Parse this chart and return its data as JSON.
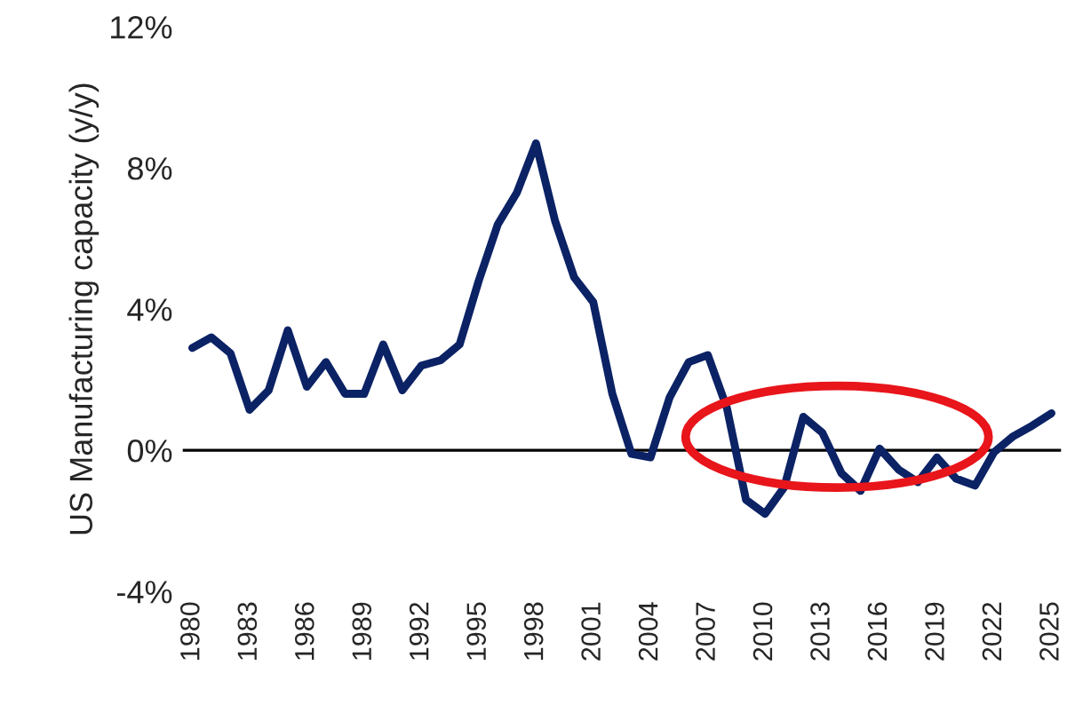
{
  "chart_data": {
    "type": "line",
    "ylabel": "US Manufacturing capacity (y/y)",
    "x": [
      1980,
      1981,
      1982,
      1983,
      1984,
      1985,
      1986,
      1987,
      1988,
      1989,
      1990,
      1991,
      1992,
      1993,
      1994,
      1995,
      1996,
      1997,
      1998,
      1999,
      2000,
      2001,
      2002,
      2003,
      2004,
      2005,
      2006,
      2007,
      2008,
      2009,
      2010,
      2011,
      2012,
      2013,
      2014,
      2015,
      2016,
      2017,
      2018,
      2019,
      2020,
      2021,
      2022,
      2023,
      2024,
      2025
    ],
    "series": [
      {
        "color": "#0b2265",
        "values": [
          2.9,
          3.2,
          2.75,
          1.15,
          1.7,
          3.4,
          1.8,
          2.5,
          1.6,
          1.6,
          3.0,
          1.7,
          2.4,
          2.55,
          3.0,
          4.8,
          6.4,
          7.3,
          8.7,
          6.5,
          4.9,
          4.2,
          1.6,
          -0.1,
          -0.2,
          1.5,
          2.5,
          2.7,
          1.2,
          -1.4,
          -1.8,
          -1.05,
          0.95,
          0.5,
          -0.65,
          -1.15,
          0.05,
          -0.55,
          -0.9,
          -0.2,
          -0.8,
          -1.0,
          -0.05,
          0.4,
          0.7,
          1.05
        ]
      }
    ],
    "xlim": [
      1979.5,
      2025.5
    ],
    "xticks": [
      1980,
      1983,
      1986,
      1989,
      1992,
      1995,
      1998,
      2001,
      2004,
      2007,
      2010,
      2013,
      2016,
      2019,
      2022,
      2025
    ],
    "ylim": [
      -4,
      12
    ],
    "yticks": [
      {
        "value": -4,
        "label": "-4%"
      },
      {
        "value": 0,
        "label": "0%"
      },
      {
        "value": 4,
        "label": "4%"
      },
      {
        "value": 8,
        "label": "8%"
      },
      {
        "value": 12,
        "label": "12%"
      }
    ],
    "ref_lines": [
      {
        "axis": "y",
        "value": 0,
        "color": "#000000"
      }
    ],
    "grid": false,
    "legend": false,
    "marker": "none",
    "line_style": "solid"
  }
}
